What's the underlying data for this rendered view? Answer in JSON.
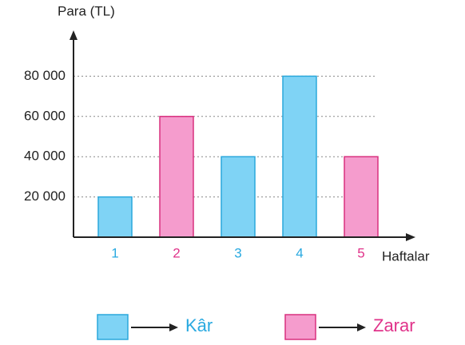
{
  "chart_data": {
    "type": "bar",
    "y_label": "Para (TL)",
    "x_label": "Haftalar",
    "categories": [
      "1",
      "2",
      "3",
      "4",
      "5"
    ],
    "series": [
      {
        "name": "Kâr",
        "color": "#7fd3f5",
        "edge": "#2aa8dc",
        "text_color": "#29a9e0",
        "values": [
          20000,
          null,
          40000,
          80000,
          null
        ]
      },
      {
        "name": "Zarar",
        "color": "#f59ccd",
        "edge": "#d8307f",
        "text_color": "#e0338a",
        "values": [
          null,
          60000,
          null,
          null,
          40000
        ]
      }
    ],
    "ylim": [
      0,
      100000
    ],
    "yticks": [
      {
        "value": 20000,
        "label": "20 000"
      },
      {
        "value": 40000,
        "label": "40 000"
      },
      {
        "value": 60000,
        "label": "60 000"
      },
      {
        "value": 80000,
        "label": "80 000"
      }
    ],
    "grid": true
  }
}
